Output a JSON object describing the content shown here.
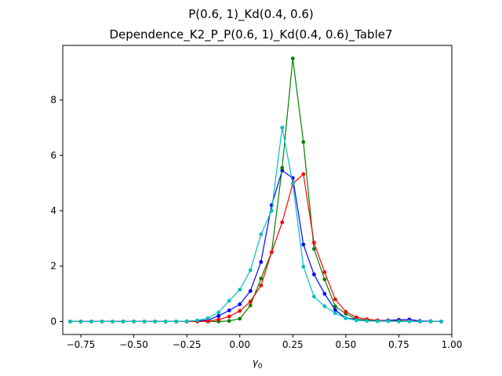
{
  "chart_data": {
    "type": "line",
    "title": "P(0.6, 1)_Kd(0.4, 0.6)",
    "subtitle": "Dependence_K2_P_P(0.6, 1)_Kd(0.4, 0.6)_Table7",
    "xlabel": "γ",
    "xlabel_subscript": "0",
    "ylabel": "",
    "xlim": [
      -0.835,
      1.0
    ],
    "ylim": [
      -0.47,
      9.97
    ],
    "xticks": [
      -0.75,
      -0.5,
      -0.25,
      0.0,
      0.25,
      0.5,
      0.75,
      1.0
    ],
    "xtick_labels": [
      "−0.75",
      "−0.50",
      "−0.25",
      "0.00",
      "0.25",
      "0.50",
      "0.75",
      "1.00"
    ],
    "yticks": [
      0,
      2,
      4,
      6,
      8
    ],
    "ytick_labels": [
      "0",
      "2",
      "4",
      "6",
      "8"
    ],
    "grid": false,
    "x": [
      -0.8,
      -0.75,
      -0.7,
      -0.65,
      -0.6,
      -0.55,
      -0.5,
      -0.45,
      -0.4,
      -0.35,
      -0.3,
      -0.25,
      -0.2,
      -0.15,
      -0.1,
      -0.05,
      0.0,
      0.05,
      0.1,
      0.15,
      0.2,
      0.25,
      0.3,
      0.35,
      0.4,
      0.45,
      0.5,
      0.55,
      0.6,
      0.65,
      0.7,
      0.75,
      0.8,
      0.85,
      0.9,
      0.95
    ],
    "series": [
      {
        "color": "#0000ff",
        "values": [
          0,
          0,
          0,
          0,
          0,
          0,
          0,
          0,
          0,
          0,
          0,
          0,
          0.02,
          0.05,
          0.2,
          0.4,
          0.62,
          1.1,
          2.15,
          4.2,
          5.45,
          5.18,
          2.78,
          1.7,
          1.0,
          0.42,
          0.12,
          0.08,
          0.05,
          0.04,
          0.04,
          0.06,
          0.07,
          0.02,
          0.01,
          0
        ]
      },
      {
        "color": "#008000",
        "values": [
          0,
          0,
          0,
          0,
          0,
          0,
          0,
          0,
          0,
          0,
          0,
          0,
          0,
          0,
          0,
          0.02,
          0.1,
          0.58,
          1.55,
          2.5,
          5.55,
          9.5,
          6.48,
          2.62,
          1.52,
          0.55,
          0.28,
          0.08,
          0.04,
          0.02,
          0.02,
          0.02,
          0.01,
          0,
          0,
          0
        ]
      },
      {
        "color": "#ff0000",
        "values": [
          0,
          0,
          0,
          0,
          0,
          0,
          0,
          0,
          0,
          0,
          0,
          0,
          0,
          0.01,
          0.07,
          0.18,
          0.38,
          0.72,
          1.3,
          2.5,
          3.58,
          4.98,
          5.32,
          2.85,
          1.78,
          0.8,
          0.35,
          0.15,
          0.08,
          0.04,
          0.02,
          0.01,
          0.01,
          0,
          0,
          0
        ]
      },
      {
        "color": "#00bfbf",
        "values": [
          0,
          0,
          0,
          0,
          0,
          0,
          0,
          0,
          0,
          0,
          0,
          0.01,
          0.04,
          0.12,
          0.33,
          0.75,
          1.15,
          1.85,
          3.15,
          4.0,
          7.0,
          4.98,
          1.98,
          0.9,
          0.55,
          0.3,
          0.12,
          0.04,
          0.02,
          0.01,
          0.01,
          0,
          0,
          0,
          0,
          0
        ]
      }
    ]
  }
}
